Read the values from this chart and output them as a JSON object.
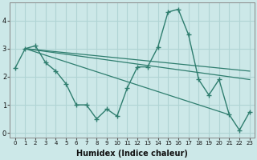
{
  "xlabel": "Humidex (Indice chaleur)",
  "bg_color": "#cce8e8",
  "grid_color": "#b0d4d4",
  "line_color": "#2e7d6e",
  "xlim": [
    -0.5,
    23.5
  ],
  "ylim": [
    -0.15,
    4.65
  ],
  "xticks": [
    0,
    1,
    2,
    3,
    4,
    5,
    6,
    7,
    8,
    9,
    10,
    11,
    12,
    13,
    14,
    15,
    16,
    17,
    18,
    19,
    20,
    21,
    22,
    23
  ],
  "yticks": [
    0,
    1,
    2,
    3,
    4
  ],
  "zigzag_x": [
    0,
    1,
    2,
    3,
    4,
    5,
    6,
    7,
    8,
    9,
    10,
    11,
    12,
    13,
    14,
    15,
    16,
    17,
    18,
    19,
    20,
    21,
    22,
    23
  ],
  "zigzag_y": [
    2.3,
    3.0,
    3.1,
    2.5,
    2.2,
    1.75,
    1.0,
    1.0,
    0.5,
    0.85,
    0.6,
    1.6,
    2.35,
    2.35,
    3.05,
    4.3,
    4.4,
    3.5,
    1.9,
    1.35,
    1.9,
    0.65,
    0.1,
    0.75
  ],
  "straight_lines": [
    {
      "x": [
        1,
        21
      ],
      "y": [
        3.0,
        0.65
      ]
    },
    {
      "x": [
        1,
        23
      ],
      "y": [
        3.0,
        1.9
      ]
    },
    {
      "x": [
        1,
        23
      ],
      "y": [
        3.0,
        2.2
      ]
    }
  ]
}
